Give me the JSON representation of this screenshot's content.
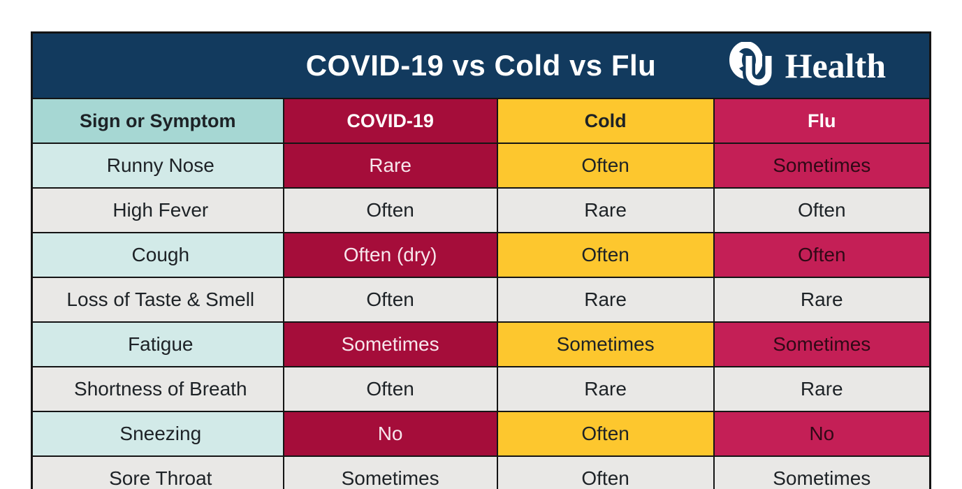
{
  "table": {
    "title": "COVID-19 vs Cold vs Flu",
    "logo": {
      "ou": "OU",
      "health": "Health"
    },
    "columns": [
      {
        "label": "Sign or Symptom"
      },
      {
        "label": "COVID-19"
      },
      {
        "label": "Cold"
      },
      {
        "label": "Flu"
      }
    ],
    "rows": [
      {
        "symptom": "Runny Nose",
        "covid": "Rare",
        "cold": "Often",
        "flu": "Sometimes",
        "highlight": true
      },
      {
        "symptom": "High Fever",
        "covid": "Often",
        "cold": "Rare",
        "flu": "Often",
        "highlight": false
      },
      {
        "symptom": "Cough",
        "covid": "Often (dry)",
        "cold": "Often",
        "flu": "Often",
        "highlight": true
      },
      {
        "symptom": "Loss of Taste & Smell",
        "covid": "Often",
        "cold": "Rare",
        "flu": "Rare",
        "highlight": false
      },
      {
        "symptom": "Fatigue",
        "covid": "Sometimes",
        "cold": "Sometimes",
        "flu": "Sometimes",
        "highlight": true
      },
      {
        "symptom": "Shortness of Breath",
        "covid": "Often",
        "cold": "Rare",
        "flu": "Rare",
        "highlight": false
      },
      {
        "symptom": "Sneezing",
        "covid": "No",
        "cold": "Often",
        "flu": "No",
        "highlight": true
      },
      {
        "symptom": "Sore Throat",
        "covid": "Sometimes",
        "cold": "Often",
        "flu": "Sometimes",
        "highlight": false
      }
    ],
    "colors": {
      "navy": "#123a5e",
      "crimson": "#a50d3a",
      "gold": "#fdc72e",
      "fluPink": "#c41f56",
      "headerTeal": "#a6d7d3",
      "rowTeal": "#d2eae8",
      "gray": "#e9e8e6",
      "border": "#141414",
      "dark": "#1d2226",
      "covidText": "#f7e6ec",
      "fluText": "#300916"
    }
  },
  "chart_data": {
    "type": "table",
    "title": "COVID-19 vs Cold vs Flu",
    "columns": [
      "Sign or Symptom",
      "COVID-19",
      "Cold",
      "Flu"
    ],
    "rows": [
      [
        "Runny Nose",
        "Rare",
        "Often",
        "Sometimes"
      ],
      [
        "High Fever",
        "Often",
        "Rare",
        "Often"
      ],
      [
        "Cough",
        "Often (dry)",
        "Often",
        "Often"
      ],
      [
        "Loss of Taste & Smell",
        "Often",
        "Rare",
        "Rare"
      ],
      [
        "Fatigue",
        "Sometimes",
        "Sometimes",
        "Sometimes"
      ],
      [
        "Shortness of Breath",
        "Often",
        "Rare",
        "Rare"
      ],
      [
        "Sneezing",
        "No",
        "Often",
        "No"
      ],
      [
        "Sore Throat",
        "Sometimes",
        "Often",
        "Sometimes"
      ]
    ],
    "legend": "none",
    "source_branding": "OU Health"
  }
}
